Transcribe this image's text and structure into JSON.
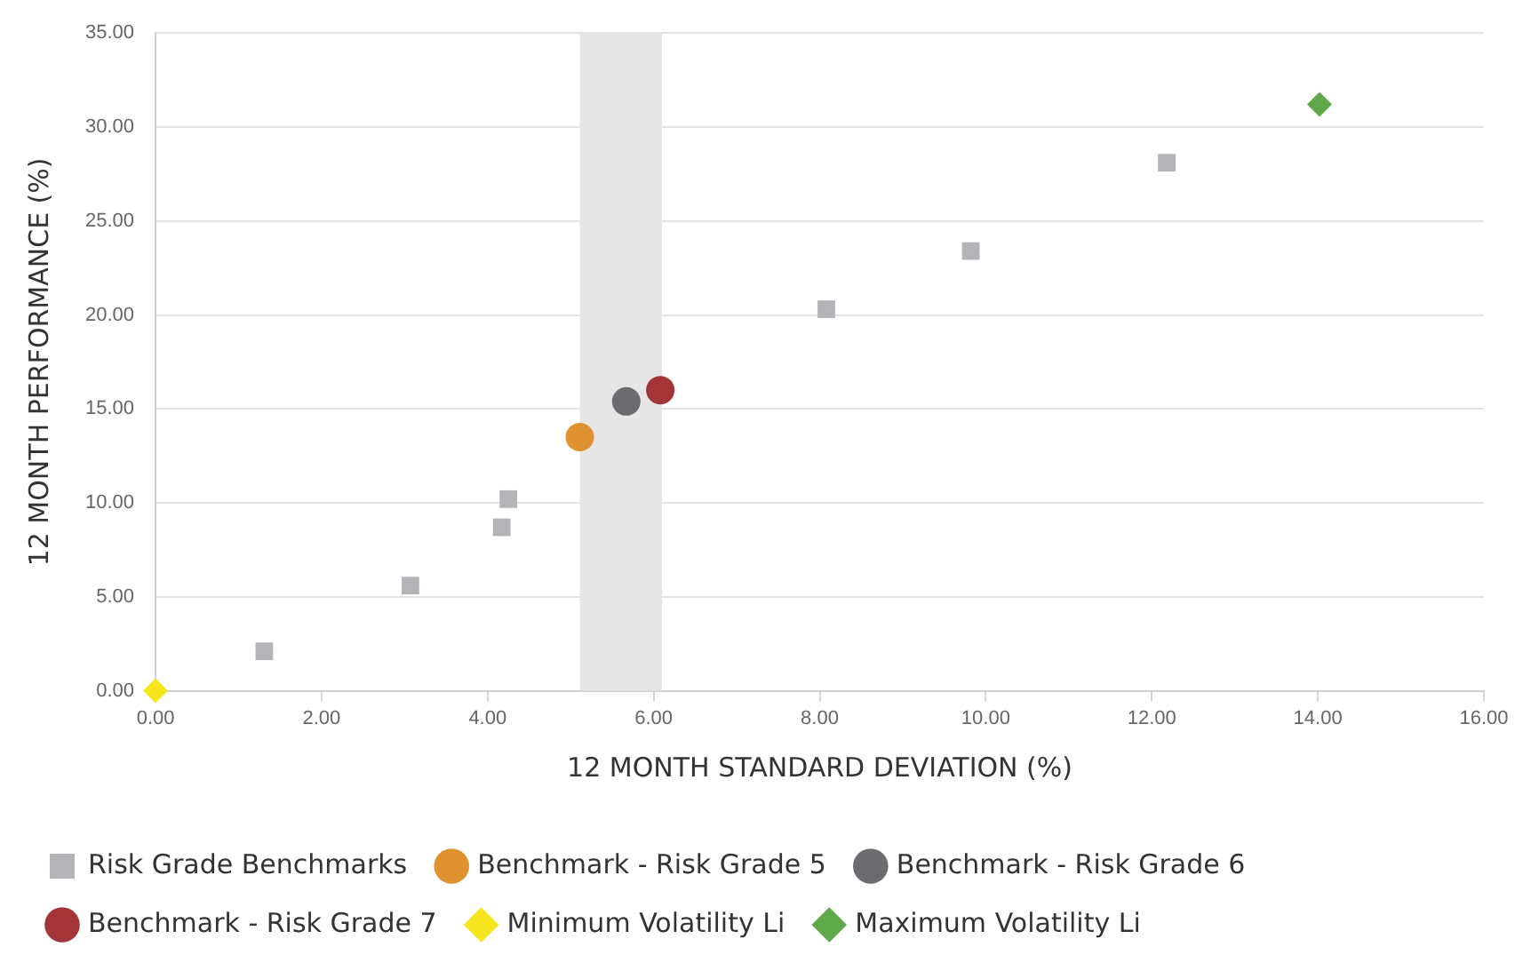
{
  "chart_data": {
    "type": "scatter",
    "xlabel": "12 MONTH STANDARD DEVIATION (%)",
    "ylabel": "12 MONTH PERFORMANCE (%)",
    "xlim": [
      0,
      16
    ],
    "xticks": [
      {
        "value": 0,
        "label": "0.00"
      },
      {
        "value": 2,
        "label": "2.00"
      },
      {
        "value": 4,
        "label": "4.00"
      },
      {
        "value": 6,
        "label": "6.00"
      },
      {
        "value": 8,
        "label": "8.00"
      },
      {
        "value": 10,
        "label": "10.00"
      },
      {
        "value": 12,
        "label": "12.00"
      },
      {
        "value": 14,
        "label": "14.00"
      },
      {
        "value": 16,
        "label": "16.00"
      }
    ],
    "ylim": [
      0,
      35
    ],
    "yticks": [
      {
        "value": 0,
        "label": "0.00"
      },
      {
        "value": 5,
        "label": "5.00"
      },
      {
        "value": 10,
        "label": "10.00"
      },
      {
        "value": 15,
        "label": "15.00"
      },
      {
        "value": 20,
        "label": "20.00"
      },
      {
        "value": 25,
        "label": "25.00"
      },
      {
        "value": 30,
        "label": "30.00"
      },
      {
        "value": 35,
        "label": "35.00"
      }
    ],
    "grid": "y",
    "legend": "bottom",
    "bands": [
      {
        "axis": "x",
        "from": 5.11,
        "to": 6.1,
        "color": "#e6e6e6"
      }
    ],
    "series": [
      {
        "name": "Risk Grade Benchmarks",
        "color": "#b3b3b8",
        "marker": "square",
        "x": [
          1.31,
          3.07,
          4.17,
          4.25,
          8.08,
          9.82,
          12.18
        ],
        "values": [
          2.1,
          5.6,
          8.7,
          10.2,
          20.3,
          23.4,
          28.1
        ]
      },
      {
        "name": "Benchmark - Risk Grade 5",
        "color": "#e09130",
        "marker": "circle",
        "x": [
          5.11
        ],
        "values": [
          13.5
        ]
      },
      {
        "name": "Benchmark - Risk Grade 6",
        "color": "#6b6b70",
        "marker": "circle",
        "x": [
          5.67
        ],
        "values": [
          15.4
        ]
      },
      {
        "name": "Benchmark - Risk Grade 7",
        "color": "#a33538",
        "marker": "circle",
        "x": [
          6.08
        ],
        "values": [
          16.0
        ]
      },
      {
        "name": "Minimum Volatility Li",
        "color": "#f5e61e",
        "marker": "diamond",
        "x": [
          0
        ],
        "values": [
          0
        ]
      },
      {
        "name": "Maximum Volatility Li",
        "color": "#5fa84a",
        "marker": "diamond",
        "x": [
          14.02
        ],
        "values": [
          31.2
        ]
      }
    ]
  }
}
